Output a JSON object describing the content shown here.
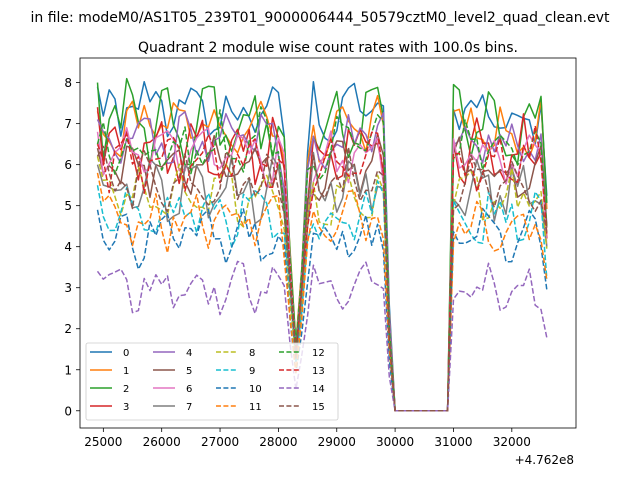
{
  "figure": {
    "suptitle": "in file: modeM0/AS1T05_239T01_9000006444_50579cztM0_level2_quad_clean.evt",
    "title": "Quadrant 2 module wise count rates with 100.0s bins.",
    "offset_label": "+4.762e8"
  },
  "chart_data": {
    "type": "line",
    "title": "Quadrant 2 module wise count rates with 100.0s bins.",
    "xlabel": "",
    "ylabel": "",
    "x_offset": 476200000,
    "xlim": [
      24600,
      33100
    ],
    "ylim": [
      -0.42,
      8.6
    ],
    "xticks": [
      25000,
      26000,
      27000,
      28000,
      29000,
      30000,
      31000,
      32000
    ],
    "yticks": [
      0,
      1,
      2,
      3,
      4,
      5,
      6,
      7,
      8
    ],
    "legend_position": "lower-left",
    "legend_columns": 4,
    "x_range_note": "100 s bins from 24900 to 32600 (offset units); gap with zero counts 30000-31000",
    "series": [
      {
        "name": "0",
        "color": "#1f77b4",
        "dash": "solid",
        "level": 7.3,
        "amp": 0.3,
        "first": 7.9
      },
      {
        "name": "1",
        "color": "#ff7f0e",
        "dash": "solid",
        "level": 6.9,
        "amp": 0.3,
        "first": 7.3
      },
      {
        "name": "2",
        "color": "#2ca02c",
        "dash": "solid",
        "level": 7.0,
        "amp": 0.4,
        "first": 8.0
      },
      {
        "name": "3",
        "color": "#d62728",
        "dash": "solid",
        "level": 6.4,
        "amp": 0.35,
        "first": 7.4
      },
      {
        "name": "4",
        "color": "#9467bd",
        "dash": "solid",
        "level": 6.6,
        "amp": 0.3,
        "first": 7.1
      },
      {
        "name": "5",
        "color": "#8c564b",
        "dash": "solid",
        "level": 5.9,
        "amp": 0.3,
        "first": 6.4
      },
      {
        "name": "6",
        "color": "#e377c2",
        "dash": "solid",
        "level": 6.2,
        "amp": 0.3,
        "first": 6.8
      },
      {
        "name": "7",
        "color": "#7f7f7f",
        "dash": "solid",
        "level": 5.4,
        "amp": 0.35,
        "first": 6.0
      },
      {
        "name": "8",
        "color": "#bcbd22",
        "dash": "dashed",
        "level": 5.2,
        "amp": 0.3,
        "first": 6.2
      },
      {
        "name": "9",
        "color": "#17becf",
        "dash": "dashed",
        "level": 4.8,
        "amp": 0.3,
        "first": 5.5
      },
      {
        "name": "10",
        "color": "#1f77b4",
        "dash": "dashed",
        "level": 4.3,
        "amp": 0.3,
        "first": 4.9
      },
      {
        "name": "11",
        "color": "#ff7f0e",
        "dash": "dashed",
        "level": 4.6,
        "amp": 0.3,
        "first": 5.8
      },
      {
        "name": "12",
        "color": "#2ca02c",
        "dash": "dashed",
        "level": 6.4,
        "amp": 0.35,
        "first": 6.5
      },
      {
        "name": "13",
        "color": "#d62728",
        "dash": "dashed",
        "level": 6.1,
        "amp": 0.3,
        "first": 6.5
      },
      {
        "name": "14",
        "color": "#9467bd",
        "dash": "dashed",
        "level": 3.0,
        "amp": 0.25,
        "first": 3.4
      },
      {
        "name": "15",
        "color": "#8c564b",
        "dash": "dashed",
        "level": 5.6,
        "amp": 0.3,
        "first": 6.2
      }
    ]
  }
}
